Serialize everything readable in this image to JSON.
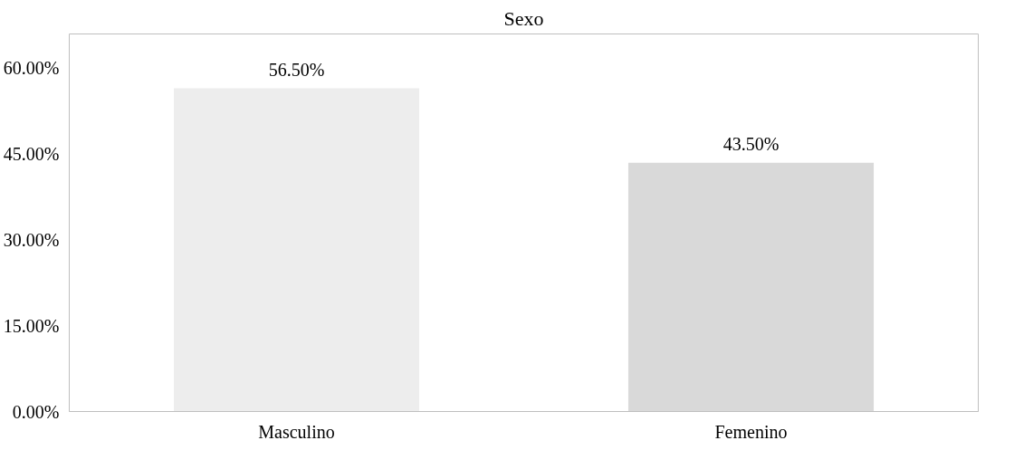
{
  "chart_data": {
    "type": "bar",
    "title": "Sexo",
    "categories": [
      "Masculino",
      "Femenino"
    ],
    "values": [
      56.5,
      43.5
    ],
    "colors": [
      "#ededed",
      "#d9d9d9"
    ],
    "value_labels": [
      "56.50%",
      "43.50%"
    ],
    "ylim": [
      0,
      66
    ],
    "yticks": [
      {
        "value": 0,
        "label": "0.00%"
      },
      {
        "value": 15,
        "label": "15.00%"
      },
      {
        "value": 30,
        "label": "30.00%"
      },
      {
        "value": 45,
        "label": "45.00%"
      },
      {
        "value": 60,
        "label": "60.00%"
      }
    ],
    "grid": false
  }
}
